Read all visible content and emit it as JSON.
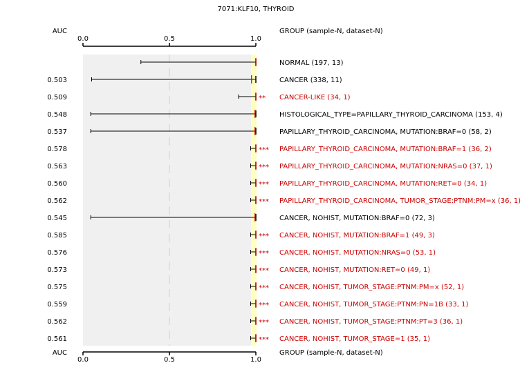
{
  "chart_data": {
    "type": "forest",
    "title": "7071:KLF10, THYROID",
    "x_axis_label": "AUC",
    "group_header": "GROUP (sample-N, dataset-N)",
    "xlim": [
      0,
      1
    ],
    "ticks": [
      {
        "value": 0,
        "label": "0.0"
      },
      {
        "value": 0.5,
        "label": "0.5"
      },
      {
        "value": 1.0,
        "label": "1.0"
      }
    ],
    "grid": true,
    "colors": {
      "normal": "#000000",
      "significant": "#cc0000",
      "panel": "#f0f0f0",
      "highlight": "#ffffc0",
      "median_line": "#cc0000"
    },
    "rows": [
      {
        "auc_label": "",
        "label": "NORMAL (197, 13)",
        "low": 0.335,
        "median": 1.0,
        "high": 1.0,
        "stars": "",
        "significant": false
      },
      {
        "auc_label": "0.503",
        "label": "CANCER (338, 11)",
        "low": 0.05,
        "median": 0.975,
        "high": 1.0,
        "stars": "",
        "significant": false
      },
      {
        "auc_label": "0.509",
        "label": "CANCER-LIKE (34, 1)",
        "low": 0.9,
        "median": 1.0,
        "high": 1.0,
        "stars": "**",
        "significant": true
      },
      {
        "auc_label": "0.548",
        "label": "HISTOLOGICAL_TYPE=PAPILLARY_THYROID_CARCINOMA (153, 4)",
        "low": 0.045,
        "median": 0.995,
        "high": 1.0,
        "stars": "",
        "significant": false
      },
      {
        "auc_label": "0.537",
        "label": "PAPILLARY_THYROID_CARCINOMA, MUTATION:BRAF=0 (58, 2)",
        "low": 0.045,
        "median": 0.995,
        "high": 1.0,
        "stars": "",
        "significant": false
      },
      {
        "auc_label": "0.578",
        "label": "PAPILLARY_THYROID_CARCINOMA, MUTATION:BRAF=1 (36, 2)",
        "low": 0.97,
        "median": 1.0,
        "high": 1.0,
        "stars": "***",
        "significant": true
      },
      {
        "auc_label": "0.563",
        "label": "PAPILLARY_THYROID_CARCINOMA, MUTATION:NRAS=0 (37, 1)",
        "low": 0.97,
        "median": 1.0,
        "high": 1.0,
        "stars": "***",
        "significant": true
      },
      {
        "auc_label": "0.560",
        "label": "PAPILLARY_THYROID_CARCINOMA, MUTATION:RET=0 (34, 1)",
        "low": 0.97,
        "median": 1.0,
        "high": 1.0,
        "stars": "***",
        "significant": true
      },
      {
        "auc_label": "0.562",
        "label": "PAPILLARY_THYROID_CARCINOMA, TUMOR_STAGE:PTNM:PM=x (36, 1)",
        "low": 0.97,
        "median": 1.0,
        "high": 1.0,
        "stars": "***",
        "significant": true
      },
      {
        "auc_label": "0.545",
        "label": "CANCER, NOHIST, MUTATION:BRAF=0 (72, 3)",
        "low": 0.045,
        "median": 0.995,
        "high": 1.0,
        "stars": "",
        "significant": false
      },
      {
        "auc_label": "0.585",
        "label": "CANCER, NOHIST, MUTATION:BRAF=1 (49, 3)",
        "low": 0.97,
        "median": 1.0,
        "high": 1.0,
        "stars": "***",
        "significant": true
      },
      {
        "auc_label": "0.576",
        "label": "CANCER, NOHIST, MUTATION:NRAS=0 (53, 1)",
        "low": 0.97,
        "median": 1.0,
        "high": 1.0,
        "stars": "***",
        "significant": true
      },
      {
        "auc_label": "0.573",
        "label": "CANCER, NOHIST, MUTATION:RET=0 (49, 1)",
        "low": 0.97,
        "median": 1.0,
        "high": 1.0,
        "stars": "***",
        "significant": true
      },
      {
        "auc_label": "0.575",
        "label": "CANCER, NOHIST, TUMOR_STAGE:PTNM:PM=x (52, 1)",
        "low": 0.97,
        "median": 1.0,
        "high": 1.0,
        "stars": "***",
        "significant": true
      },
      {
        "auc_label": "0.559",
        "label": "CANCER, NOHIST, TUMOR_STAGE:PTNM:PN=1B (33, 1)",
        "low": 0.97,
        "median": 1.0,
        "high": 1.0,
        "stars": "***",
        "significant": true
      },
      {
        "auc_label": "0.562",
        "label": "CANCER, NOHIST, TUMOR_STAGE:PTNM:PT=3 (36, 1)",
        "low": 0.97,
        "median": 1.0,
        "high": 1.0,
        "stars": "***",
        "significant": true
      },
      {
        "auc_label": "0.561",
        "label": "CANCER, NOHIST, TUMOR_STAGE=1 (35, 1)",
        "low": 0.97,
        "median": 1.0,
        "high": 1.0,
        "stars": "***",
        "significant": true
      }
    ]
  }
}
